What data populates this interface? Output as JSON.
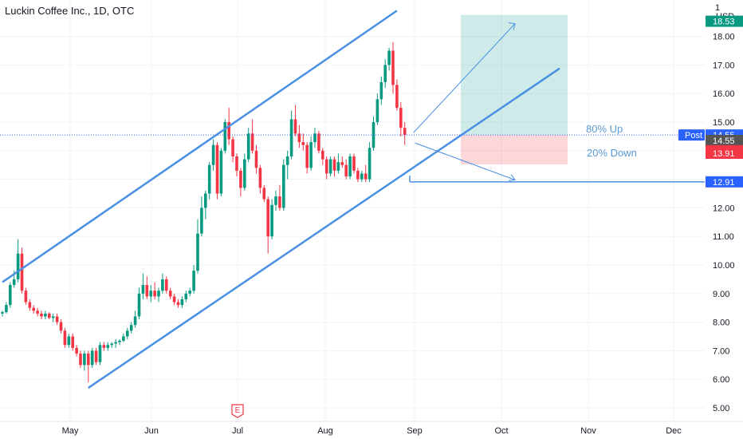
{
  "header": {
    "title": "Luckin Coffee Inc., 1D, OTC"
  },
  "axis": {
    "currency": "USD",
    "top_tick": "1"
  },
  "chart_data": {
    "type": "candlestick",
    "title": "Luckin Coffee Inc., 1D, OTC",
    "ylim": [
      4.6,
      19.0
    ],
    "y_ticks": [
      "5.00",
      "6.00",
      "7.00",
      "8.00",
      "9.00",
      "10.00",
      "11.00",
      "12.00",
      "13.00",
      "14.00",
      "15.00",
      "16.00",
      "17.00",
      "18.00"
    ],
    "x_ticks": [
      "May",
      "Jun",
      "Jul",
      "Aug",
      "Sep",
      "Oct",
      "Nov",
      "Dec"
    ],
    "earnings_marker": "E",
    "candles": [
      {
        "o": 8.3,
        "h": 8.4,
        "l": 8.2,
        "c": 8.35
      },
      {
        "o": 8.35,
        "h": 8.7,
        "l": 8.3,
        "c": 8.6
      },
      {
        "o": 8.6,
        "h": 9.4,
        "l": 8.5,
        "c": 9.3
      },
      {
        "o": 9.3,
        "h": 9.8,
        "l": 9.2,
        "c": 9.5
      },
      {
        "o": 9.5,
        "h": 10.9,
        "l": 9.4,
        "c": 10.4
      },
      {
        "o": 10.4,
        "h": 10.6,
        "l": 9.0,
        "c": 9.1
      },
      {
        "o": 9.1,
        "h": 9.2,
        "l": 8.6,
        "c": 8.7
      },
      {
        "o": 8.7,
        "h": 8.8,
        "l": 8.4,
        "c": 8.5
      },
      {
        "o": 8.5,
        "h": 8.6,
        "l": 8.3,
        "c": 8.4
      },
      {
        "o": 8.4,
        "h": 8.5,
        "l": 8.2,
        "c": 8.3
      },
      {
        "o": 8.3,
        "h": 8.4,
        "l": 8.1,
        "c": 8.2
      },
      {
        "o": 8.2,
        "h": 8.4,
        "l": 8.1,
        "c": 8.3
      },
      {
        "o": 8.3,
        "h": 8.35,
        "l": 8.1,
        "c": 8.15
      },
      {
        "o": 8.15,
        "h": 8.3,
        "l": 8.0,
        "c": 8.2
      },
      {
        "o": 8.2,
        "h": 8.3,
        "l": 7.9,
        "c": 8.0
      },
      {
        "o": 8.0,
        "h": 8.1,
        "l": 7.6,
        "c": 7.7
      },
      {
        "o": 7.7,
        "h": 7.8,
        "l": 7.1,
        "c": 7.2
      },
      {
        "o": 7.2,
        "h": 7.6,
        "l": 7.1,
        "c": 7.5
      },
      {
        "o": 7.5,
        "h": 7.6,
        "l": 7.0,
        "c": 7.1
      },
      {
        "o": 7.1,
        "h": 7.2,
        "l": 6.8,
        "c": 6.9
      },
      {
        "o": 6.9,
        "h": 7.0,
        "l": 6.4,
        "c": 6.5
      },
      {
        "o": 6.5,
        "h": 7.0,
        "l": 6.3,
        "c": 6.9
      },
      {
        "o": 6.9,
        "h": 7.0,
        "l": 5.9,
        "c": 6.5
      },
      {
        "o": 6.5,
        "h": 7.1,
        "l": 6.4,
        "c": 7.0
      },
      {
        "o": 7.0,
        "h": 7.1,
        "l": 6.5,
        "c": 6.6
      },
      {
        "o": 6.6,
        "h": 7.3,
        "l": 6.5,
        "c": 7.2
      },
      {
        "o": 7.2,
        "h": 7.3,
        "l": 7.0,
        "c": 7.1
      },
      {
        "o": 7.1,
        "h": 7.3,
        "l": 7.0,
        "c": 7.2
      },
      {
        "o": 7.2,
        "h": 7.3,
        "l": 7.1,
        "c": 7.25
      },
      {
        "o": 7.25,
        "h": 7.4,
        "l": 7.1,
        "c": 7.3
      },
      {
        "o": 7.3,
        "h": 7.4,
        "l": 7.2,
        "c": 7.35
      },
      {
        "o": 7.35,
        "h": 7.6,
        "l": 7.3,
        "c": 7.5
      },
      {
        "o": 7.5,
        "h": 7.8,
        "l": 7.4,
        "c": 7.7
      },
      {
        "o": 7.7,
        "h": 8.0,
        "l": 7.6,
        "c": 7.9
      },
      {
        "o": 7.9,
        "h": 8.4,
        "l": 7.8,
        "c": 8.2
      },
      {
        "o": 8.2,
        "h": 9.2,
        "l": 8.1,
        "c": 9.0
      },
      {
        "o": 9.0,
        "h": 9.7,
        "l": 8.8,
        "c": 9.3
      },
      {
        "o": 9.3,
        "h": 9.6,
        "l": 8.8,
        "c": 8.9
      },
      {
        "o": 8.9,
        "h": 9.3,
        "l": 8.7,
        "c": 9.1
      },
      {
        "o": 9.1,
        "h": 9.4,
        "l": 8.8,
        "c": 8.9
      },
      {
        "o": 8.9,
        "h": 9.2,
        "l": 8.7,
        "c": 9.1
      },
      {
        "o": 9.1,
        "h": 9.7,
        "l": 9.0,
        "c": 9.5
      },
      {
        "o": 9.5,
        "h": 9.6,
        "l": 9.0,
        "c": 9.1
      },
      {
        "o": 9.1,
        "h": 9.2,
        "l": 8.8,
        "c": 8.9
      },
      {
        "o": 8.9,
        "h": 9.0,
        "l": 8.6,
        "c": 8.7
      },
      {
        "o": 8.7,
        "h": 8.8,
        "l": 8.5,
        "c": 8.6
      },
      {
        "o": 8.6,
        "h": 8.9,
        "l": 8.5,
        "c": 8.8
      },
      {
        "o": 8.8,
        "h": 9.1,
        "l": 8.7,
        "c": 9.0
      },
      {
        "o": 9.0,
        "h": 9.2,
        "l": 8.9,
        "c": 9.1
      },
      {
        "o": 9.1,
        "h": 10.0,
        "l": 9.0,
        "c": 9.8
      },
      {
        "o": 9.8,
        "h": 11.6,
        "l": 9.7,
        "c": 11.1
      },
      {
        "o": 11.1,
        "h": 12.4,
        "l": 11.0,
        "c": 12.0
      },
      {
        "o": 12.0,
        "h": 12.6,
        "l": 11.6,
        "c": 12.5
      },
      {
        "o": 12.5,
        "h": 13.6,
        "l": 12.3,
        "c": 13.5
      },
      {
        "o": 13.5,
        "h": 14.4,
        "l": 13.3,
        "c": 14.2
      },
      {
        "o": 14.2,
        "h": 14.3,
        "l": 12.3,
        "c": 12.5
      },
      {
        "o": 12.5,
        "h": 14.1,
        "l": 12.4,
        "c": 14.0
      },
      {
        "o": 14.0,
        "h": 15.1,
        "l": 13.9,
        "c": 15.0
      },
      {
        "o": 15.0,
        "h": 15.5,
        "l": 14.2,
        "c": 14.4
      },
      {
        "o": 14.4,
        "h": 14.5,
        "l": 13.6,
        "c": 13.8
      },
      {
        "o": 13.8,
        "h": 13.9,
        "l": 13.1,
        "c": 13.3
      },
      {
        "o": 13.3,
        "h": 13.4,
        "l": 12.4,
        "c": 12.7
      },
      {
        "o": 12.7,
        "h": 13.9,
        "l": 12.6,
        "c": 13.7
      },
      {
        "o": 13.7,
        "h": 14.8,
        "l": 13.6,
        "c": 14.6
      },
      {
        "o": 14.6,
        "h": 15.1,
        "l": 13.9,
        "c": 14.0
      },
      {
        "o": 14.0,
        "h": 14.2,
        "l": 13.2,
        "c": 13.4
      },
      {
        "o": 13.4,
        "h": 13.5,
        "l": 12.5,
        "c": 12.7
      },
      {
        "o": 12.7,
        "h": 12.8,
        "l": 12.2,
        "c": 12.3
      },
      {
        "o": 12.3,
        "h": 12.4,
        "l": 10.4,
        "c": 11.0
      },
      {
        "o": 11.0,
        "h": 12.3,
        "l": 10.9,
        "c": 12.1
      },
      {
        "o": 12.1,
        "h": 12.6,
        "l": 11.9,
        "c": 12.4
      },
      {
        "o": 12.4,
        "h": 12.8,
        "l": 11.9,
        "c": 12.0
      },
      {
        "o": 12.0,
        "h": 13.7,
        "l": 11.9,
        "c": 13.5
      },
      {
        "o": 13.5,
        "h": 14.0,
        "l": 13.0,
        "c": 13.8
      },
      {
        "o": 13.8,
        "h": 15.4,
        "l": 13.7,
        "c": 15.1
      },
      {
        "o": 15.1,
        "h": 15.6,
        "l": 14.5,
        "c": 14.6
      },
      {
        "o": 14.6,
        "h": 14.9,
        "l": 14.1,
        "c": 14.3
      },
      {
        "o": 14.3,
        "h": 14.6,
        "l": 14.0,
        "c": 14.2
      },
      {
        "o": 14.2,
        "h": 14.3,
        "l": 13.2,
        "c": 13.4
      },
      {
        "o": 13.4,
        "h": 14.5,
        "l": 13.3,
        "c": 14.3
      },
      {
        "o": 14.3,
        "h": 14.8,
        "l": 14.1,
        "c": 14.6
      },
      {
        "o": 14.6,
        "h": 14.7,
        "l": 13.9,
        "c": 14.0
      },
      {
        "o": 14.0,
        "h": 14.1,
        "l": 13.5,
        "c": 13.7
      },
      {
        "o": 13.7,
        "h": 13.8,
        "l": 13.0,
        "c": 13.2
      },
      {
        "o": 13.2,
        "h": 13.8,
        "l": 13.1,
        "c": 13.7
      },
      {
        "o": 13.7,
        "h": 13.8,
        "l": 13.1,
        "c": 13.3
      },
      {
        "o": 13.3,
        "h": 13.9,
        "l": 13.2,
        "c": 13.6
      },
      {
        "o": 13.6,
        "h": 13.8,
        "l": 13.4,
        "c": 13.5
      },
      {
        "o": 13.5,
        "h": 13.7,
        "l": 13.0,
        "c": 13.1
      },
      {
        "o": 13.1,
        "h": 13.9,
        "l": 13.0,
        "c": 13.8
      },
      {
        "o": 13.8,
        "h": 13.9,
        "l": 13.2,
        "c": 13.3
      },
      {
        "o": 13.3,
        "h": 13.4,
        "l": 12.9,
        "c": 13.0
      },
      {
        "o": 13.0,
        "h": 13.3,
        "l": 12.9,
        "c": 13.2
      },
      {
        "o": 13.2,
        "h": 13.5,
        "l": 12.9,
        "c": 13.0
      },
      {
        "o": 13.0,
        "h": 14.3,
        "l": 12.9,
        "c": 14.1
      },
      {
        "o": 14.1,
        "h": 15.2,
        "l": 14.0,
        "c": 15.0
      },
      {
        "o": 15.0,
        "h": 16.0,
        "l": 14.9,
        "c": 15.8
      },
      {
        "o": 15.8,
        "h": 16.6,
        "l": 15.6,
        "c": 16.4
      },
      {
        "o": 16.4,
        "h": 17.2,
        "l": 16.2,
        "c": 17.0
      },
      {
        "o": 17.0,
        "h": 17.6,
        "l": 16.8,
        "c": 17.5
      },
      {
        "o": 17.5,
        "h": 17.8,
        "l": 16.0,
        "c": 16.3
      },
      {
        "o": 16.3,
        "h": 16.5,
        "l": 15.4,
        "c": 15.5
      },
      {
        "o": 15.5,
        "h": 15.7,
        "l": 14.5,
        "c": 14.8
      },
      {
        "o": 14.8,
        "h": 15.0,
        "l": 14.2,
        "c": 14.55
      }
    ],
    "annotations": {
      "channel_upper": [
        [
          0,
          9.4
        ],
        [
          101,
          18.9
        ]
      ],
      "channel_lower": [
        [
          22,
          5.7
        ],
        [
          122,
          16.6
        ]
      ],
      "upside_label": "80% Up",
      "downside_label": "20% Down",
      "entry": 14.55,
      "target": 18.53,
      "stop": 13.91,
      "support": 12.91
    },
    "price_badges": [
      {
        "text": "18.53",
        "color": "#089981",
        "price": 18.53
      },
      {
        "text": "14.55",
        "color": "#2962ff",
        "price": 14.55,
        "prefix": "Post"
      },
      {
        "text": "14.55",
        "color": "#555555",
        "price": 14.36
      },
      {
        "text": "14.55",
        "color": "#f23645",
        "price": 14.0,
        "mode": "overlap"
      },
      {
        "text": "13.91",
        "color": "#f23645",
        "price": 13.91
      },
      {
        "text": "12.91",
        "color": "#2962ff",
        "price": 12.91
      }
    ]
  }
}
